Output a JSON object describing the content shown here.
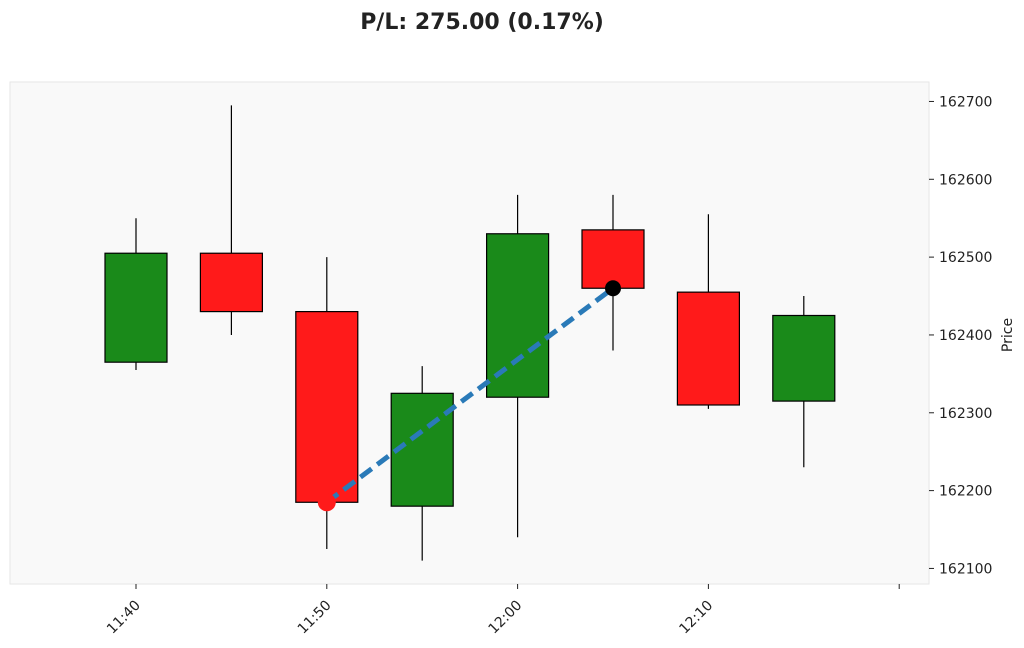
{
  "chart_data": {
    "type": "candlestick",
    "title": "P/L: 275.00 (0.17%)",
    "xlabel": "",
    "ylabel": "Price",
    "y_axis_position": "right",
    "ylim": [
      162080,
      162725
    ],
    "y_ticks": [
      162100,
      162200,
      162300,
      162400,
      162500,
      162600,
      162700
    ],
    "x_ticks": [
      "11:40",
      "11:50",
      "12:00",
      "12:10",
      ""
    ],
    "candles": [
      {
        "time": "11:40",
        "open": 162365,
        "high": 162550,
        "low": 162355,
        "close": 162505
      },
      {
        "time": "11:45",
        "open": 162505,
        "high": 162695,
        "low": 162400,
        "close": 162430
      },
      {
        "time": "11:50",
        "open": 162430,
        "high": 162500,
        "low": 162125,
        "close": 162185
      },
      {
        "time": "11:55",
        "open": 162180,
        "high": 162360,
        "low": 162110,
        "close": 162325
      },
      {
        "time": "12:00",
        "open": 162320,
        "high": 162580,
        "low": 162140,
        "close": 162530
      },
      {
        "time": "12:05",
        "open": 162535,
        "high": 162580,
        "low": 162380,
        "close": 162460
      },
      {
        "time": "12:10",
        "open": 162455,
        "high": 162555,
        "low": 162305,
        "close": 162310
      },
      {
        "time": "12:15",
        "open": 162315,
        "high": 162450,
        "low": 162230,
        "close": 162425
      }
    ],
    "trade": {
      "entry": {
        "candle_index": 2,
        "price": 162185
      },
      "exit": {
        "candle_index": 5,
        "price": 162460
      }
    },
    "colors": {
      "up": "#1a8a1a",
      "down": "#ff1a1a",
      "wick": "#000000",
      "plot_bg": "#f9f9f9",
      "plot_border": "#e6e6e6",
      "trade_line": "#2a7ab8",
      "entry_marker": "#ff1a1a",
      "exit_marker": "#000000"
    },
    "grid": false
  }
}
